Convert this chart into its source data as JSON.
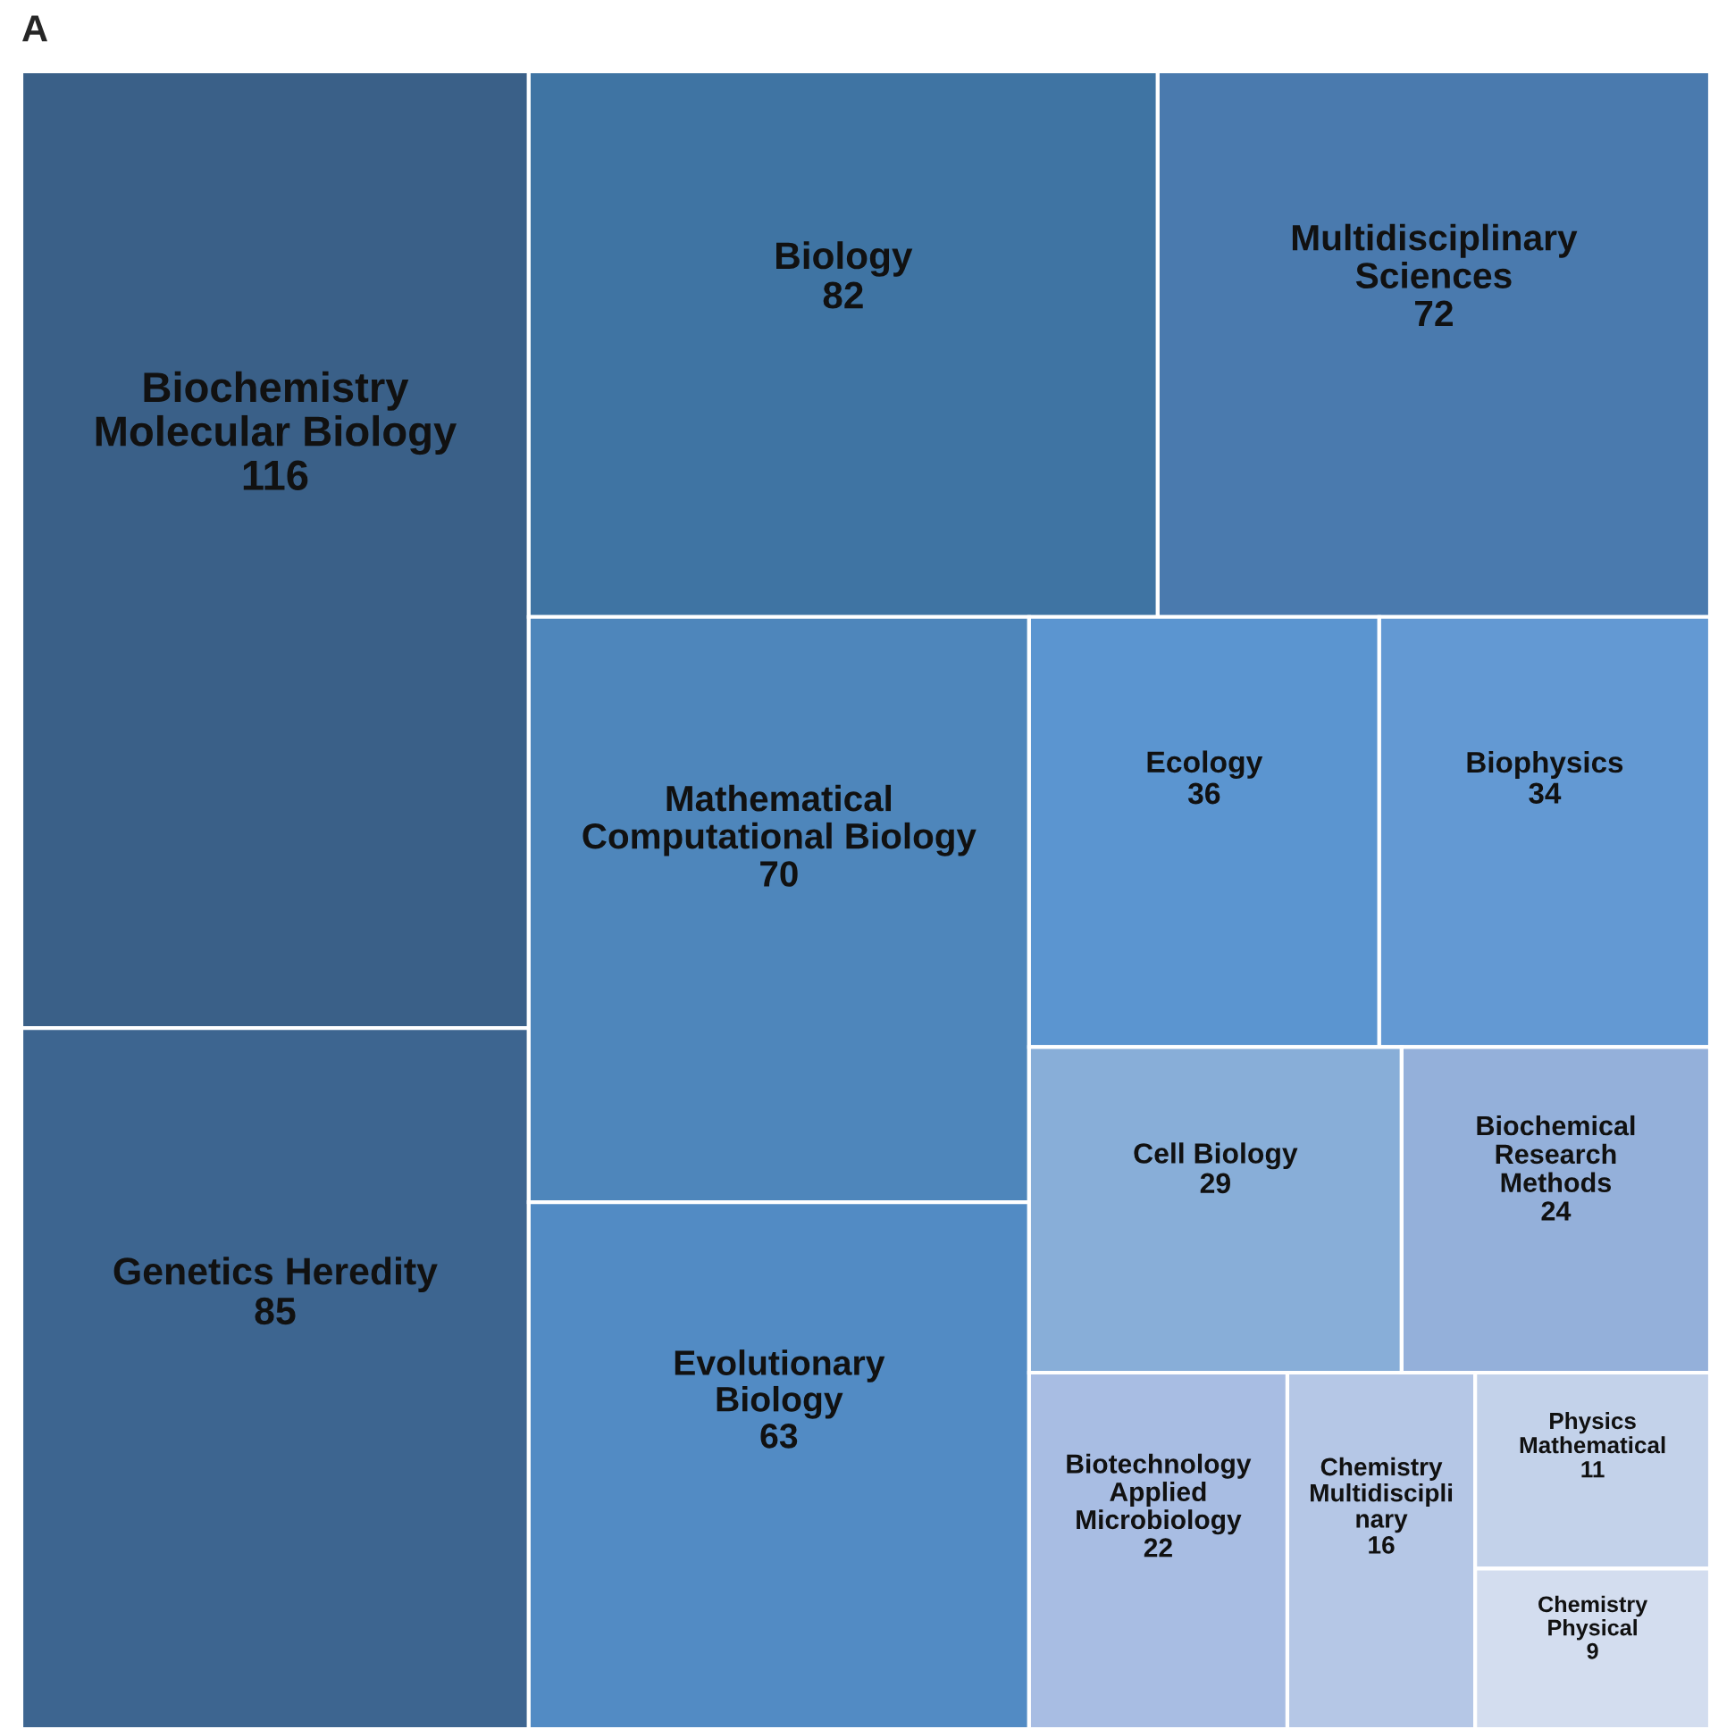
{
  "chart_data": {
    "type": "other",
    "title": "A",
    "categories": [
      "Biochemistry\nMolecular Biology",
      "Genetics Heredity",
      "Biology",
      "Multidisciplinary\nSciences",
      "Mathematical\nComputational Biology",
      "Evolutionary\nBiology",
      "Ecology",
      "Biophysics",
      "Cell Biology",
      "Biochemical\nResearch\nMethods",
      "Biotechnology\nApplied\nMicrobiology",
      "Chemistry\nMultidiscipli\nnary",
      "Physics\nMathematical",
      "Chemistry\nPhysical"
    ],
    "values": [
      116,
      85,
      82,
      72,
      70,
      63,
      36,
      34,
      29,
      24,
      22,
      16,
      11,
      9
    ],
    "colors": [
      "#3a6088",
      "#3d6590",
      "#3f74a3",
      "#4a7aae",
      "#4e86bb",
      "#528bc4",
      "#5b95d0",
      "#6399d3",
      "#88aed8",
      "#94b0da",
      "#a8bde3",
      "#b5c7e6",
      "#c3d2ea",
      "#d3ddef"
    ],
    "data_labels": true
  }
}
